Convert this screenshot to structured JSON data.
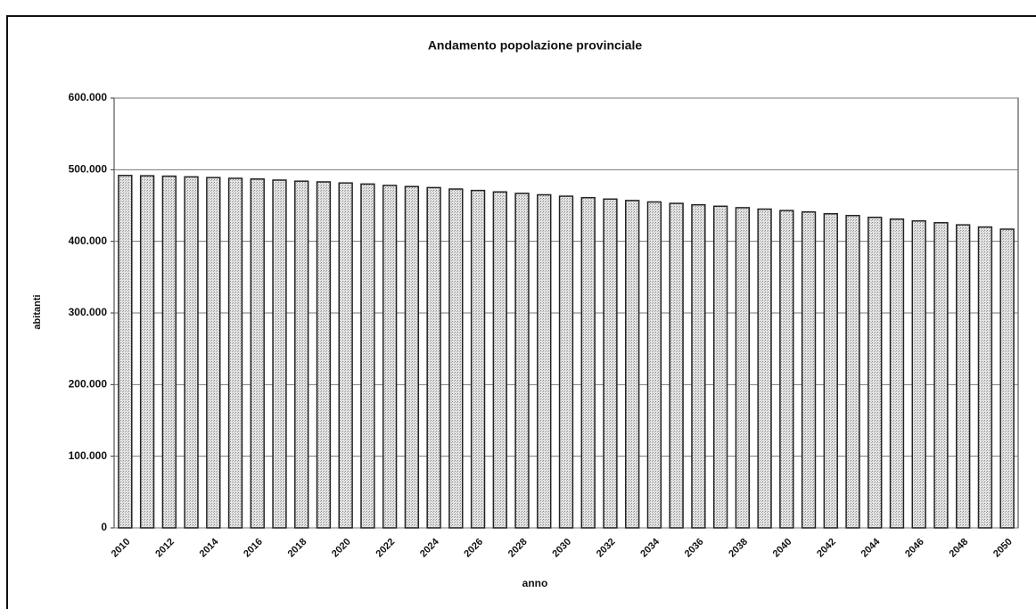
{
  "chart_data": {
    "type": "bar",
    "title": "Andamento popolazione provinciale",
    "x_label": "anno",
    "y_label": "abitanti",
    "categories": [
      "2010",
      null,
      "2012",
      null,
      "2014",
      null,
      "2016",
      null,
      "2018",
      null,
      "2020",
      null,
      "2022",
      null,
      "2024",
      null,
      "2026",
      null,
      "2028",
      null,
      "2030",
      null,
      "2032",
      null,
      "2034",
      null,
      "2036",
      null,
      "2038",
      null,
      "2040",
      null,
      "2042",
      null,
      "2044",
      null,
      "2046",
      null,
      "2048",
      null,
      "2050"
    ],
    "values": [
      492000,
      491500,
      491000,
      490000,
      489000,
      488000,
      487000,
      485500,
      484000,
      483000,
      481500,
      480000,
      478000,
      476500,
      475000,
      473000,
      471000,
      469000,
      467000,
      465000,
      463000,
      461000,
      459000,
      457000,
      455000,
      453000,
      451000,
      449000,
      447000,
      445000,
      443000,
      441000,
      438500,
      436000,
      433500,
      431000,
      428500,
      426000,
      423000,
      420000,
      417000
    ],
    "color": "#d8d8d8",
    "ylim": [
      0,
      600000
    ],
    "yticks": [
      0,
      {
        "value": 100000,
        "label": "100.000"
      },
      {
        "value": 200000,
        "label": "200.000"
      },
      {
        "value": 300000,
        "label": "300.000"
      },
      {
        "value": 400000,
        "label": "400.000"
      },
      {
        "value": 500000,
        "label": "500.000"
      },
      {
        "value": 600000,
        "label": "600.000"
      }
    ],
    "grid": true
  }
}
